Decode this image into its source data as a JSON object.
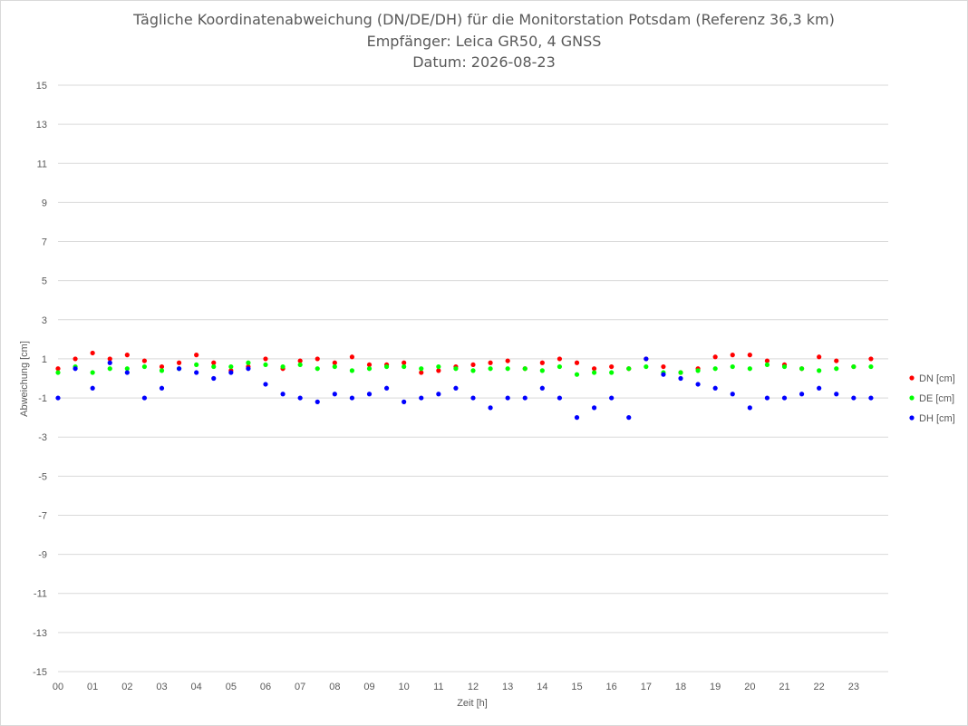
{
  "title": {
    "line1": "Tägliche Koordinatenabweichung (DN/DE/DH) für die Monitorstation Potsdam (Referenz 36,3 km)",
    "line2": "Empfänger: Leica GR50, 4 GNSS",
    "line3": "Datum: 2026-08-23"
  },
  "colors": {
    "DN": "#ff0000",
    "DE": "#00ff00",
    "DH": "#0000ff",
    "grid": "#d9d9d9",
    "text": "#595959"
  },
  "chart_data": {
    "type": "scatter",
    "title": "Tägliche Koordinatenabweichung (DN/DE/DH) für die Monitorstation Potsdam (Referenz 36,3 km) — Empfänger: Leica GR50, 4 GNSS — Datum: 2026-08-23",
    "xlabel": "Zeit [h]",
    "ylabel": "Abweichung [cm]",
    "xlim": [
      0,
      24
    ],
    "ylim": [
      -15,
      15
    ],
    "x_ticks": [
      "00",
      "01",
      "02",
      "03",
      "04",
      "05",
      "06",
      "07",
      "08",
      "09",
      "10",
      "11",
      "12",
      "13",
      "14",
      "15",
      "16",
      "17",
      "18",
      "19",
      "20",
      "21",
      "22",
      "23"
    ],
    "y_ticks": [
      15,
      13,
      11,
      9,
      7,
      5,
      3,
      1,
      -1,
      -3,
      -5,
      -7,
      -9,
      -11,
      -13,
      -15
    ],
    "grid": true,
    "legend_position": "right",
    "series": [
      {
        "name": "DN [cm]",
        "x": [
          0.0,
          0.5,
          1.0,
          1.5,
          2.0,
          2.5,
          3.0,
          3.5,
          4.0,
          4.5,
          5.0,
          5.5,
          6.0,
          6.5,
          7.0,
          7.5,
          8.0,
          8.5,
          9.0,
          9.5,
          10.0,
          10.5,
          11.0,
          11.5,
          12.0,
          12.5,
          13.0,
          13.5,
          14.0,
          14.5,
          15.0,
          15.5,
          16.0,
          16.5,
          17.0,
          17.5,
          18.0,
          18.5,
          19.0,
          19.5,
          20.0,
          20.5,
          21.0,
          21.5,
          22.0,
          22.5,
          23.0,
          23.5
        ],
        "y": [
          0.5,
          1.0,
          1.3,
          1.0,
          1.2,
          0.9,
          0.6,
          0.8,
          1.2,
          0.8,
          0.4,
          0.6,
          1.0,
          0.5,
          0.9,
          1.0,
          0.8,
          1.1,
          0.7,
          0.7,
          0.8,
          0.3,
          0.4,
          0.6,
          0.7,
          0.8,
          0.9,
          0.5,
          0.8,
          1.0,
          0.8,
          0.5,
          0.6,
          0.5,
          1.0,
          0.6,
          0.3,
          0.5,
          1.1,
          1.2,
          1.2,
          0.9,
          0.7,
          0.5,
          1.1,
          0.9,
          0.6,
          1.0
        ]
      },
      {
        "name": "DE [cm]",
        "x": [
          0.0,
          0.5,
          1.0,
          1.5,
          2.0,
          2.5,
          3.0,
          3.5,
          4.0,
          4.5,
          5.0,
          5.5,
          6.0,
          6.5,
          7.0,
          7.5,
          8.0,
          8.5,
          9.0,
          9.5,
          10.0,
          10.5,
          11.0,
          11.5,
          12.0,
          12.5,
          13.0,
          13.5,
          14.0,
          14.5,
          15.0,
          15.5,
          16.0,
          16.5,
          17.0,
          17.5,
          18.0,
          18.5,
          19.0,
          19.5,
          20.0,
          20.5,
          21.0,
          21.5,
          22.0,
          22.5,
          23.0,
          23.5
        ],
        "y": [
          0.3,
          0.6,
          0.3,
          0.5,
          0.5,
          0.6,
          0.4,
          0.5,
          0.7,
          0.6,
          0.6,
          0.8,
          0.7,
          0.6,
          0.7,
          0.5,
          0.6,
          0.4,
          0.5,
          0.6,
          0.6,
          0.5,
          0.6,
          0.5,
          0.4,
          0.5,
          0.5,
          0.5,
          0.4,
          0.6,
          0.2,
          0.3,
          0.3,
          0.5,
          0.6,
          0.3,
          0.3,
          0.4,
          0.5,
          0.6,
          0.5,
          0.7,
          0.6,
          0.5,
          0.4,
          0.5,
          0.6,
          0.6
        ]
      },
      {
        "name": "DH [cm]",
        "x": [
          0.0,
          0.5,
          1.0,
          1.5,
          2.0,
          2.5,
          3.0,
          3.5,
          4.0,
          4.5,
          5.0,
          5.5,
          6.0,
          6.5,
          7.0,
          7.5,
          8.0,
          8.5,
          9.0,
          9.5,
          10.0,
          10.5,
          11.0,
          11.5,
          12.0,
          12.5,
          13.0,
          13.5,
          14.0,
          14.5,
          15.0,
          15.5,
          16.0,
          16.5,
          17.0,
          17.5,
          18.0,
          18.5,
          19.0,
          19.5,
          20.0,
          20.5,
          21.0,
          21.5,
          22.0,
          22.5,
          23.0,
          23.5
        ],
        "y": [
          -1.0,
          0.5,
          -0.5,
          0.8,
          0.3,
          -1.0,
          -0.5,
          0.5,
          0.3,
          0.0,
          0.3,
          0.5,
          -0.3,
          -0.8,
          -1.0,
          -1.2,
          -0.8,
          -1.0,
          -0.8,
          -0.5,
          -1.2,
          -1.0,
          -0.8,
          -0.5,
          -1.0,
          -1.5,
          -1.0,
          -1.0,
          -0.5,
          -1.0,
          -2.0,
          -1.5,
          -1.0,
          -2.0,
          1.0,
          0.2,
          0.0,
          -0.3,
          -0.5,
          -0.8,
          -1.5,
          -1.0,
          -1.0,
          -0.8,
          -0.5,
          -0.8,
          -1.0,
          -1.0
        ]
      }
    ]
  }
}
